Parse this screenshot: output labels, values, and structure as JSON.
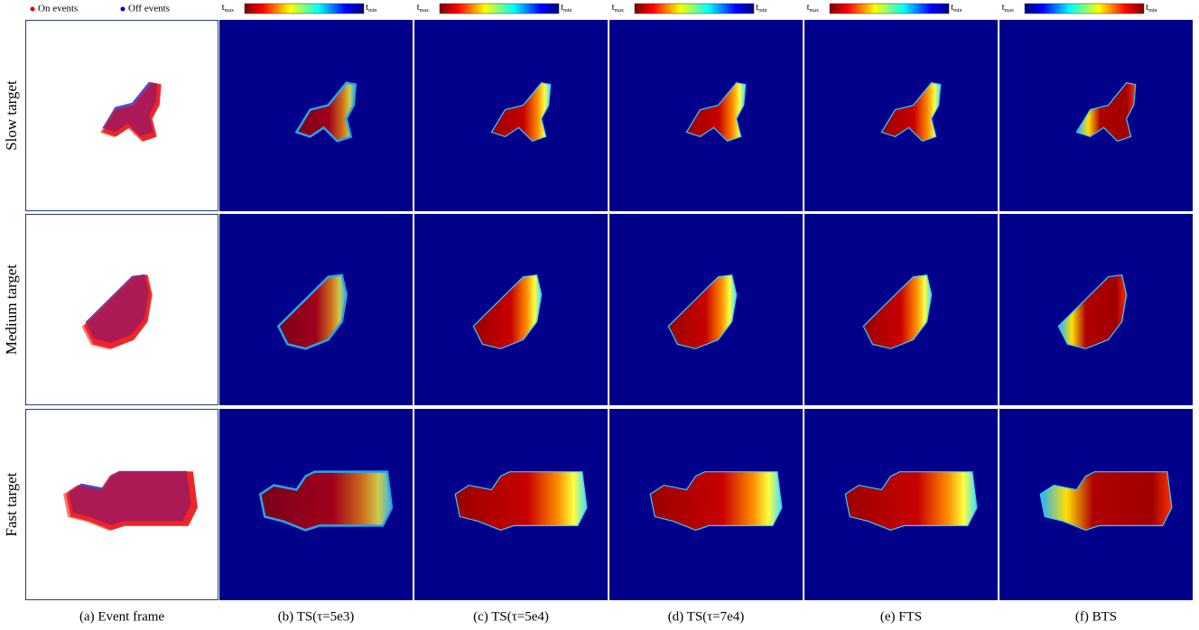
{
  "legend": {
    "on": "On events",
    "off": "Off events"
  },
  "rows": [
    "Slow target",
    "Medium target",
    "Fast target"
  ],
  "columns": [
    {
      "caption": "(a) Event frame",
      "kind": "event"
    },
    {
      "caption": "(b) TS(τ=5e3)",
      "kind": "ts",
      "colormap": "jet_reversed",
      "colorbar": {
        "start": {
          "base": "t",
          "sub": "max"
        },
        "end": {
          "base": "t",
          "sub": "min"
        }
      }
    },
    {
      "caption": "(c) TS(τ=5e4)",
      "kind": "ts",
      "colormap": "jet_reversed",
      "colorbar": {
        "start": {
          "base": "t",
          "sub": "max"
        },
        "end": {
          "base": "t",
          "sub": "min"
        }
      }
    },
    {
      "caption": "(d) TS(τ=7e4)",
      "kind": "ts",
      "colormap": "jet_reversed",
      "colorbar": {
        "start": {
          "base": "t",
          "sub": "max"
        },
        "end": {
          "base": "t",
          "sub": "min"
        }
      }
    },
    {
      "caption": "(e) FTS",
      "kind": "ts",
      "colormap": "jet_reversed",
      "colorbar": {
        "start": {
          "base": "t",
          "sub": "max"
        },
        "end": {
          "base": "t",
          "sub": "min"
        }
      }
    },
    {
      "caption": "(f) BTS",
      "kind": "ts",
      "colormap": "jet",
      "colorbar": {
        "start": {
          "base": "t",
          "sub": "max"
        },
        "end": {
          "base": "t",
          "sub": "min"
        }
      }
    }
  ]
}
